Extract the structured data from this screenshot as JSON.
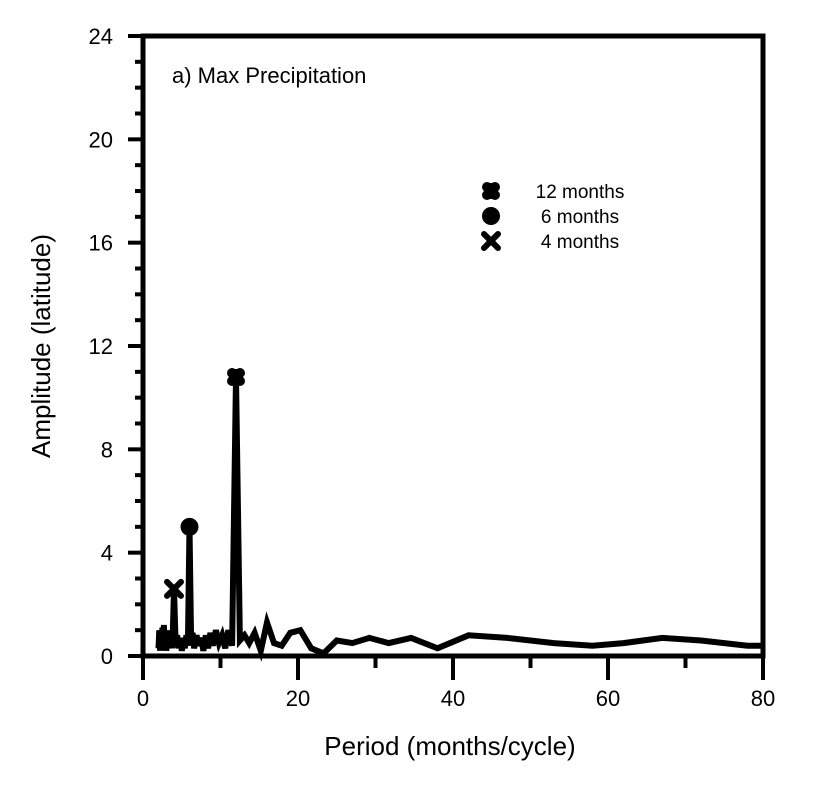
{
  "chart_data": {
    "type": "line",
    "title": "a) Max Precipitation",
    "xlabel": "Period (months/cycle)",
    "ylabel": "Amplitude (latitude)",
    "xlim": [
      0,
      80
    ],
    "ylim": [
      0,
      24
    ],
    "xticks": [
      0,
      20,
      40,
      60,
      80
    ],
    "xtick_labels": [
      "0",
      "20",
      "40",
      "60",
      "80"
    ],
    "xminor_step": 10,
    "yticks": [
      0,
      4,
      8,
      12,
      16,
      20,
      24
    ],
    "ytick_labels": [
      "0",
      "4",
      "8",
      "12",
      "16",
      "20",
      "24"
    ],
    "yminor_step": 1,
    "grid": false,
    "legend_position": "upper-right-center",
    "series": [
      {
        "name": "spectrum",
        "color": "#000000",
        "x": [
          2.0,
          2.1,
          2.2,
          2.3,
          2.4,
          2.5,
          2.6,
          2.7,
          2.8,
          2.9,
          3.0,
          3.1,
          3.2,
          3.3,
          3.4,
          3.6,
          3.8,
          4.0,
          4.2,
          4.4,
          4.6,
          4.8,
          5.0,
          5.2,
          5.4,
          5.6,
          5.8,
          6.0,
          6.2,
          6.4,
          6.6,
          6.9,
          7.2,
          7.5,
          7.8,
          8.1,
          8.4,
          8.7,
          9.0,
          9.4,
          9.8,
          10.2,
          10.6,
          11.0,
          11.5,
          12.0,
          12.5,
          13.1,
          13.7,
          14.4,
          15.2,
          16.0,
          16.9,
          17.9,
          19.0,
          20.3,
          21.7,
          23.3,
          25.0,
          27.0,
          29.2,
          31.7,
          34.6,
          38.0,
          42.0,
          47.0,
          53.0,
          58.0,
          62.0,
          67.0,
          72.0,
          78.0,
          80.0
        ],
        "y": [
          0.3,
          1.0,
          0.2,
          0.9,
          0.3,
          1.1,
          0.2,
          1.2,
          0.3,
          0.9,
          0.2,
          0.7,
          0.3,
          1.0,
          0.4,
          0.8,
          0.3,
          2.6,
          0.5,
          0.8,
          0.3,
          0.7,
          0.2,
          0.6,
          0.3,
          0.8,
          0.4,
          5.0,
          0.6,
          0.9,
          0.3,
          0.8,
          0.4,
          0.7,
          0.2,
          0.8,
          0.3,
          0.9,
          0.4,
          1.0,
          0.5,
          0.8,
          0.3,
          1.0,
          0.4,
          10.8,
          0.6,
          0.8,
          0.5,
          0.9,
          0.2,
          1.3,
          0.5,
          0.4,
          0.9,
          1.0,
          0.3,
          0.1,
          0.6,
          0.5,
          0.7,
          0.5,
          0.7,
          0.3,
          0.8,
          0.7,
          0.5,
          0.4,
          0.5,
          0.7,
          0.6,
          0.4,
          0.4
        ]
      }
    ],
    "markers": [
      {
        "label": "12 months",
        "period": 12,
        "amplitude": 10.8,
        "symbol": "cross-blob"
      },
      {
        "label": "6 months",
        "period": 6,
        "amplitude": 5.0,
        "symbol": "circle"
      },
      {
        "label": "4 months",
        "period": 4,
        "amplitude": 2.6,
        "symbol": "x"
      }
    ],
    "legend": [
      {
        "label": "12 months",
        "symbol": "cross-blob"
      },
      {
        "label": "6 months",
        "symbol": "circle"
      },
      {
        "label": "4 months",
        "symbol": "x"
      }
    ]
  }
}
